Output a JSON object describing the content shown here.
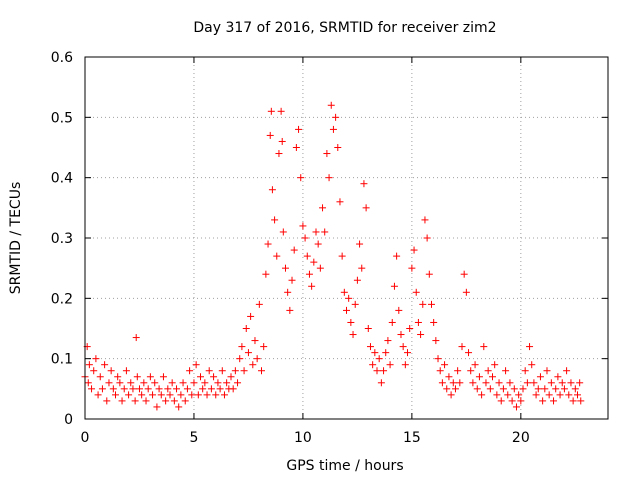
{
  "chart_data": {
    "type": "scatter",
    "title": "Day 317 of 2016, SRMTID for receiver zim2",
    "xlabel": "GPS time / hours",
    "ylabel": "SRMTID / TECUs",
    "xlim": [
      0,
      24
    ],
    "ylim": [
      0,
      0.6
    ],
    "grid": true,
    "marker": "+",
    "marker_color": "#ff0000",
    "x_ticks": [
      0,
      5,
      10,
      15,
      20
    ],
    "x_tick_labels": [
      "0",
      "5",
      "10",
      "15",
      "20"
    ],
    "y_ticks": [
      0,
      0.1,
      0.2,
      0.3,
      0.4,
      0.5,
      0.6
    ],
    "y_tick_labels": [
      "0",
      "0.1",
      "0.2",
      "0.3",
      "0.4",
      "0.5",
      "0.6"
    ],
    "series": [
      {
        "name": "SRMTID",
        "points": [
          [
            0.0,
            0.07
          ],
          [
            0.1,
            0.12
          ],
          [
            0.15,
            0.06
          ],
          [
            0.2,
            0.09
          ],
          [
            0.3,
            0.05
          ],
          [
            0.4,
            0.08
          ],
          [
            0.5,
            0.1
          ],
          [
            0.6,
            0.04
          ],
          [
            0.7,
            0.07
          ],
          [
            0.8,
            0.05
          ],
          [
            0.9,
            0.09
          ],
          [
            1.0,
            0.03
          ],
          [
            1.1,
            0.06
          ],
          [
            1.2,
            0.08
          ],
          [
            1.3,
            0.05
          ],
          [
            1.4,
            0.04
          ],
          [
            1.5,
            0.07
          ],
          [
            1.6,
            0.06
          ],
          [
            1.7,
            0.03
          ],
          [
            1.8,
            0.05
          ],
          [
            1.9,
            0.08
          ],
          [
            2.0,
            0.04
          ],
          [
            2.1,
            0.06
          ],
          [
            2.2,
            0.05
          ],
          [
            2.3,
            0.03
          ],
          [
            2.35,
            0.135
          ],
          [
            2.4,
            0.07
          ],
          [
            2.5,
            0.05
          ],
          [
            2.6,
            0.04
          ],
          [
            2.7,
            0.06
          ],
          [
            2.8,
            0.03
          ],
          [
            2.9,
            0.05
          ],
          [
            3.0,
            0.07
          ],
          [
            3.1,
            0.04
          ],
          [
            3.2,
            0.06
          ],
          [
            3.3,
            0.02
          ],
          [
            3.4,
            0.05
          ],
          [
            3.5,
            0.04
          ],
          [
            3.6,
            0.07
          ],
          [
            3.7,
            0.03
          ],
          [
            3.8,
            0.05
          ],
          [
            3.9,
            0.04
          ],
          [
            4.0,
            0.06
          ],
          [
            4.1,
            0.03
          ],
          [
            4.2,
            0.05
          ],
          [
            4.3,
            0.02
          ],
          [
            4.4,
            0.04
          ],
          [
            4.5,
            0.06
          ],
          [
            4.6,
            0.03
          ],
          [
            4.7,
            0.05
          ],
          [
            4.8,
            0.08
          ],
          [
            4.9,
            0.04
          ],
          [
            5.0,
            0.06
          ],
          [
            5.1,
            0.09
          ],
          [
            5.2,
            0.04
          ],
          [
            5.3,
            0.07
          ],
          [
            5.4,
            0.05
          ],
          [
            5.5,
            0.06
          ],
          [
            5.6,
            0.04
          ],
          [
            5.7,
            0.08
          ],
          [
            5.8,
            0.05
          ],
          [
            5.9,
            0.07
          ],
          [
            6.0,
            0.04
          ],
          [
            6.1,
            0.06
          ],
          [
            6.2,
            0.05
          ],
          [
            6.3,
            0.08
          ],
          [
            6.4,
            0.04
          ],
          [
            6.5,
            0.06
          ],
          [
            6.6,
            0.05
          ],
          [
            6.7,
            0.07
          ],
          [
            6.8,
            0.05
          ],
          [
            6.9,
            0.08
          ],
          [
            7.0,
            0.06
          ],
          [
            7.1,
            0.1
          ],
          [
            7.2,
            0.12
          ],
          [
            7.3,
            0.08
          ],
          [
            7.4,
            0.15
          ],
          [
            7.5,
            0.11
          ],
          [
            7.6,
            0.17
          ],
          [
            7.7,
            0.09
          ],
          [
            7.8,
            0.13
          ],
          [
            7.9,
            0.1
          ],
          [
            8.0,
            0.19
          ],
          [
            8.1,
            0.08
          ],
          [
            8.2,
            0.12
          ],
          [
            8.3,
            0.24
          ],
          [
            8.4,
            0.29
          ],
          [
            8.5,
            0.47
          ],
          [
            8.55,
            0.51
          ],
          [
            8.6,
            0.38
          ],
          [
            8.7,
            0.33
          ],
          [
            8.8,
            0.27
          ],
          [
            8.9,
            0.44
          ],
          [
            9.0,
            0.51
          ],
          [
            9.05,
            0.46
          ],
          [
            9.1,
            0.31
          ],
          [
            9.2,
            0.25
          ],
          [
            9.3,
            0.21
          ],
          [
            9.4,
            0.18
          ],
          [
            9.5,
            0.23
          ],
          [
            9.6,
            0.28
          ],
          [
            9.7,
            0.45
          ],
          [
            9.8,
            0.48
          ],
          [
            9.9,
            0.4
          ],
          [
            10.0,
            0.32
          ],
          [
            10.1,
            0.3
          ],
          [
            10.2,
            0.27
          ],
          [
            10.3,
            0.24
          ],
          [
            10.4,
            0.22
          ],
          [
            10.5,
            0.26
          ],
          [
            10.6,
            0.31
          ],
          [
            10.7,
            0.29
          ],
          [
            10.8,
            0.25
          ],
          [
            10.9,
            0.35
          ],
          [
            11.0,
            0.31
          ],
          [
            11.1,
            0.44
          ],
          [
            11.2,
            0.4
          ],
          [
            11.3,
            0.52
          ],
          [
            11.4,
            0.48
          ],
          [
            11.5,
            0.5
          ],
          [
            11.6,
            0.45
          ],
          [
            11.7,
            0.36
          ],
          [
            11.8,
            0.27
          ],
          [
            11.9,
            0.21
          ],
          [
            12.0,
            0.18
          ],
          [
            12.1,
            0.2
          ],
          [
            12.2,
            0.16
          ],
          [
            12.3,
            0.14
          ],
          [
            12.4,
            0.19
          ],
          [
            12.5,
            0.23
          ],
          [
            12.6,
            0.29
          ],
          [
            12.7,
            0.25
          ],
          [
            12.8,
            0.39
          ],
          [
            12.9,
            0.35
          ],
          [
            13.0,
            0.15
          ],
          [
            13.1,
            0.12
          ],
          [
            13.2,
            0.09
          ],
          [
            13.3,
            0.11
          ],
          [
            13.4,
            0.08
          ],
          [
            13.5,
            0.1
          ],
          [
            13.6,
            0.06
          ],
          [
            13.7,
            0.08
          ],
          [
            13.8,
            0.11
          ],
          [
            13.9,
            0.13
          ],
          [
            14.0,
            0.09
          ],
          [
            14.1,
            0.16
          ],
          [
            14.2,
            0.22
          ],
          [
            14.3,
            0.27
          ],
          [
            14.4,
            0.18
          ],
          [
            14.5,
            0.14
          ],
          [
            14.6,
            0.12
          ],
          [
            14.7,
            0.09
          ],
          [
            14.8,
            0.11
          ],
          [
            14.9,
            0.15
          ],
          [
            15.0,
            0.25
          ],
          [
            15.1,
            0.28
          ],
          [
            15.2,
            0.21
          ],
          [
            15.3,
            0.16
          ],
          [
            15.4,
            0.14
          ],
          [
            15.5,
            0.19
          ],
          [
            15.6,
            0.33
          ],
          [
            15.7,
            0.3
          ],
          [
            15.8,
            0.24
          ],
          [
            15.9,
            0.19
          ],
          [
            16.0,
            0.16
          ],
          [
            16.1,
            0.13
          ],
          [
            16.2,
            0.1
          ],
          [
            16.3,
            0.08
          ],
          [
            16.4,
            0.06
          ],
          [
            16.5,
            0.09
          ],
          [
            16.6,
            0.05
          ],
          [
            16.7,
            0.07
          ],
          [
            16.8,
            0.04
          ],
          [
            16.9,
            0.06
          ],
          [
            17.0,
            0.05
          ],
          [
            17.1,
            0.08
          ],
          [
            17.2,
            0.06
          ],
          [
            17.3,
            0.12
          ],
          [
            17.4,
            0.24
          ],
          [
            17.5,
            0.21
          ],
          [
            17.6,
            0.11
          ],
          [
            17.7,
            0.08
          ],
          [
            17.8,
            0.06
          ],
          [
            17.9,
            0.09
          ],
          [
            18.0,
            0.05
          ],
          [
            18.1,
            0.07
          ],
          [
            18.2,
            0.04
          ],
          [
            18.3,
            0.12
          ],
          [
            18.4,
            0.06
          ],
          [
            18.5,
            0.08
          ],
          [
            18.6,
            0.05
          ],
          [
            18.7,
            0.07
          ],
          [
            18.8,
            0.09
          ],
          [
            18.9,
            0.04
          ],
          [
            19.0,
            0.06
          ],
          [
            19.1,
            0.03
          ],
          [
            19.2,
            0.05
          ],
          [
            19.3,
            0.08
          ],
          [
            19.4,
            0.04
          ],
          [
            19.5,
            0.06
          ],
          [
            19.6,
            0.03
          ],
          [
            19.7,
            0.05
          ],
          [
            19.8,
            0.02
          ],
          [
            19.9,
            0.04
          ],
          [
            20.0,
            0.03
          ],
          [
            20.1,
            0.05
          ],
          [
            20.2,
            0.08
          ],
          [
            20.3,
            0.06
          ],
          [
            20.4,
            0.12
          ],
          [
            20.5,
            0.09
          ],
          [
            20.6,
            0.06
          ],
          [
            20.7,
            0.04
          ],
          [
            20.8,
            0.05
          ],
          [
            20.9,
            0.07
          ],
          [
            21.0,
            0.03
          ],
          [
            21.1,
            0.05
          ],
          [
            21.2,
            0.08
          ],
          [
            21.3,
            0.04
          ],
          [
            21.4,
            0.06
          ],
          [
            21.5,
            0.03
          ],
          [
            21.6,
            0.05
          ],
          [
            21.7,
            0.07
          ],
          [
            21.8,
            0.04
          ],
          [
            21.9,
            0.06
          ],
          [
            22.0,
            0.05
          ],
          [
            22.1,
            0.08
          ],
          [
            22.2,
            0.04
          ],
          [
            22.3,
            0.06
          ],
          [
            22.4,
            0.03
          ],
          [
            22.5,
            0.05
          ],
          [
            22.6,
            0.04
          ],
          [
            22.7,
            0.06
          ],
          [
            22.75,
            0.03
          ]
        ]
      }
    ]
  }
}
